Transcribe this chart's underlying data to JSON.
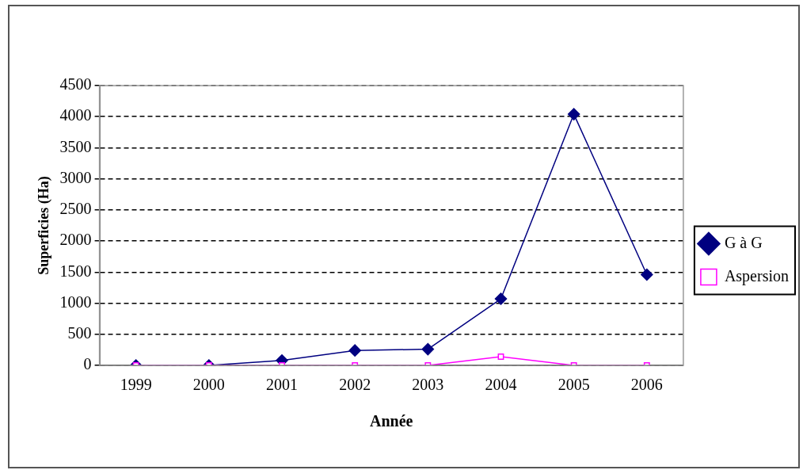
{
  "chart_data": {
    "type": "line",
    "xlabel": "Année",
    "ylabel": "Superficies (Ha)",
    "categories": [
      "1999",
      "2000",
      "2001",
      "2002",
      "2003",
      "2004",
      "2005",
      "2006"
    ],
    "series": [
      {
        "name": "G à G",
        "color": "#000080",
        "marker": "diamond",
        "values": [
          0,
          0,
          80,
          240,
          260,
          1070,
          4040,
          1460
        ]
      },
      {
        "name": "Aspersion",
        "color": "#ff00ff",
        "marker": "square",
        "values": [
          0,
          0,
          0,
          0,
          0,
          140,
          0,
          0
        ]
      }
    ],
    "ylim": [
      0,
      4500
    ],
    "yticks": [
      0,
      500,
      1000,
      1500,
      2000,
      2500,
      3000,
      3500,
      4000,
      4500
    ],
    "grid": "y",
    "legend": "right"
  }
}
